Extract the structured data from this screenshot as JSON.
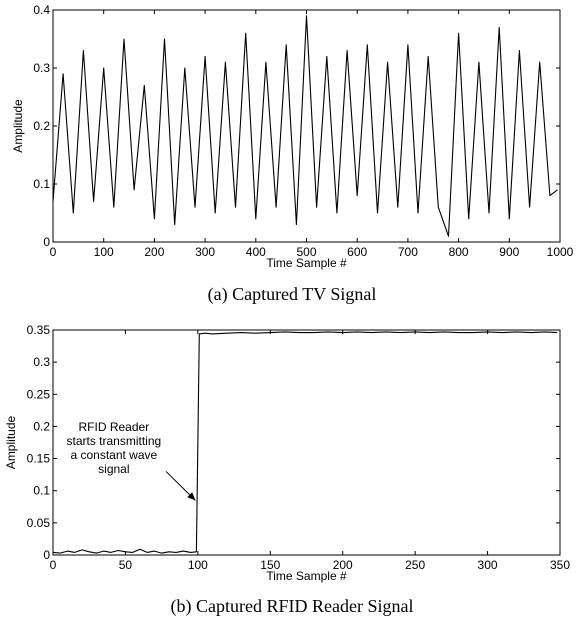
{
  "chart_data": [
    {
      "type": "line",
      "caption": "(a) Captured TV Signal",
      "xlabel": "Time Sample #",
      "ylabel": "Amplitude",
      "xlim": [
        0,
        1000
      ],
      "ylim": [
        0,
        0.4
      ],
      "xticks": [
        0,
        100,
        200,
        300,
        400,
        500,
        600,
        700,
        800,
        900,
        1000
      ],
      "yticks": [
        0,
        0.1,
        0.2,
        0.3,
        0.4
      ],
      "xtick_labels": [
        "0",
        "100",
        "200",
        "300",
        "400",
        "500",
        "600",
        "700",
        "800",
        "900",
        "1000"
      ],
      "ytick_labels": [
        "0",
        "0.1",
        "0.2",
        "0.3",
        "0.4"
      ],
      "series": [
        {
          "color": "#000000",
          "x": [
            0,
            20,
            40,
            60,
            80,
            100,
            120,
            140,
            160,
            180,
            200,
            220,
            240,
            260,
            280,
            300,
            320,
            340,
            360,
            380,
            400,
            420,
            440,
            460,
            480,
            500,
            520,
            540,
            560,
            580,
            600,
            620,
            640,
            660,
            680,
            700,
            720,
            740,
            760,
            780,
            800,
            820,
            840,
            860,
            880,
            900,
            920,
            940,
            960,
            980,
            995
          ],
          "y": [
            0.07,
            0.29,
            0.05,
            0.33,
            0.07,
            0.3,
            0.06,
            0.35,
            0.09,
            0.27,
            0.04,
            0.35,
            0.03,
            0.3,
            0.06,
            0.32,
            0.05,
            0.31,
            0.06,
            0.36,
            0.04,
            0.31,
            0.06,
            0.34,
            0.03,
            0.39,
            0.06,
            0.32,
            0.05,
            0.33,
            0.08,
            0.34,
            0.05,
            0.31,
            0.06,
            0.34,
            0.05,
            0.32,
            0.06,
            0.01,
            0.36,
            0.04,
            0.31,
            0.05,
            0.37,
            0.04,
            0.33,
            0.06,
            0.31,
            0.08,
            0.09
          ]
        }
      ]
    },
    {
      "type": "line",
      "caption": "(b) Captured RFID Reader Signal",
      "xlabel": "Time Sample #",
      "ylabel": "Amplitude",
      "xlim": [
        0,
        350
      ],
      "ylim": [
        0,
        0.35
      ],
      "xticks": [
        0,
        50,
        100,
        150,
        200,
        250,
        300,
        350
      ],
      "yticks": [
        0,
        0.05,
        0.1,
        0.15,
        0.2,
        0.25,
        0.3,
        0.35
      ],
      "xtick_labels": [
        "0",
        "50",
        "100",
        "150",
        "200",
        "250",
        "300",
        "350"
      ],
      "ytick_labels": [
        "0",
        "0.05",
        "0.1",
        "0.15",
        "0.2",
        "0.25",
        "0.3",
        "0.35"
      ],
      "annotation": {
        "lines": [
          "RFID Reader",
          "starts transmitting",
          "a constant wave",
          "signal"
        ],
        "points_to": [
          99,
          0.085
        ]
      },
      "series": [
        {
          "color": "#000000",
          "x": [
            0,
            5,
            10,
            15,
            20,
            25,
            30,
            35,
            40,
            45,
            50,
            55,
            60,
            65,
            70,
            75,
            80,
            85,
            90,
            95,
            99,
            101,
            105,
            110,
            120,
            130,
            140,
            150,
            160,
            170,
            180,
            190,
            200,
            210,
            220,
            230,
            240,
            250,
            260,
            270,
            280,
            290,
            300,
            310,
            320,
            330,
            340,
            348
          ],
          "y": [
            0.004,
            0.003,
            0.006,
            0.004,
            0.008,
            0.005,
            0.003,
            0.006,
            0.004,
            0.007,
            0.005,
            0.004,
            0.009,
            0.004,
            0.006,
            0.003,
            0.005,
            0.004,
            0.006,
            0.004,
            0.005,
            0.344,
            0.345,
            0.344,
            0.345,
            0.346,
            0.345,
            0.346,
            0.347,
            0.346,
            0.346,
            0.347,
            0.346,
            0.347,
            0.346,
            0.347,
            0.346,
            0.347,
            0.346,
            0.347,
            0.346,
            0.346,
            0.347,
            0.346,
            0.347,
            0.346,
            0.347,
            0.346
          ]
        }
      ]
    }
  ]
}
